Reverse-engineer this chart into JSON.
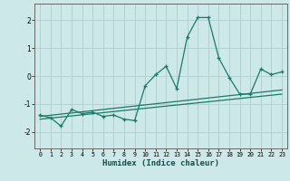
{
  "xlabel": "Humidex (Indice chaleur)",
  "xlim": [
    -0.5,
    23.5
  ],
  "ylim": [
    -2.6,
    2.6
  ],
  "xticks": [
    0,
    1,
    2,
    3,
    4,
    5,
    6,
    7,
    8,
    9,
    10,
    11,
    12,
    13,
    14,
    15,
    16,
    17,
    18,
    19,
    20,
    21,
    22,
    23
  ],
  "yticks": [
    -2,
    -1,
    0,
    1,
    2
  ],
  "bg_color": "#cce8e8",
  "grid_color": "#b0cccc",
  "line_color": "#1a7a6a",
  "data_x": [
    0,
    1,
    2,
    3,
    4,
    5,
    6,
    7,
    8,
    9,
    10,
    11,
    12,
    13,
    14,
    15,
    16,
    17,
    18,
    19,
    20,
    21,
    22,
    23
  ],
  "data_y": [
    -1.4,
    -1.5,
    -1.8,
    -1.2,
    -1.35,
    -1.3,
    -1.45,
    -1.4,
    -1.55,
    -1.6,
    -0.35,
    0.05,
    0.35,
    -0.45,
    1.4,
    2.1,
    2.1,
    0.65,
    -0.05,
    -0.65,
    -0.65,
    0.25,
    0.05,
    0.15
  ],
  "trend1_x": [
    0,
    23
  ],
  "trend1_y": [
    -1.55,
    -0.65
  ],
  "trend2_x": [
    0,
    23
  ],
  "trend2_y": [
    -1.45,
    -0.5
  ]
}
